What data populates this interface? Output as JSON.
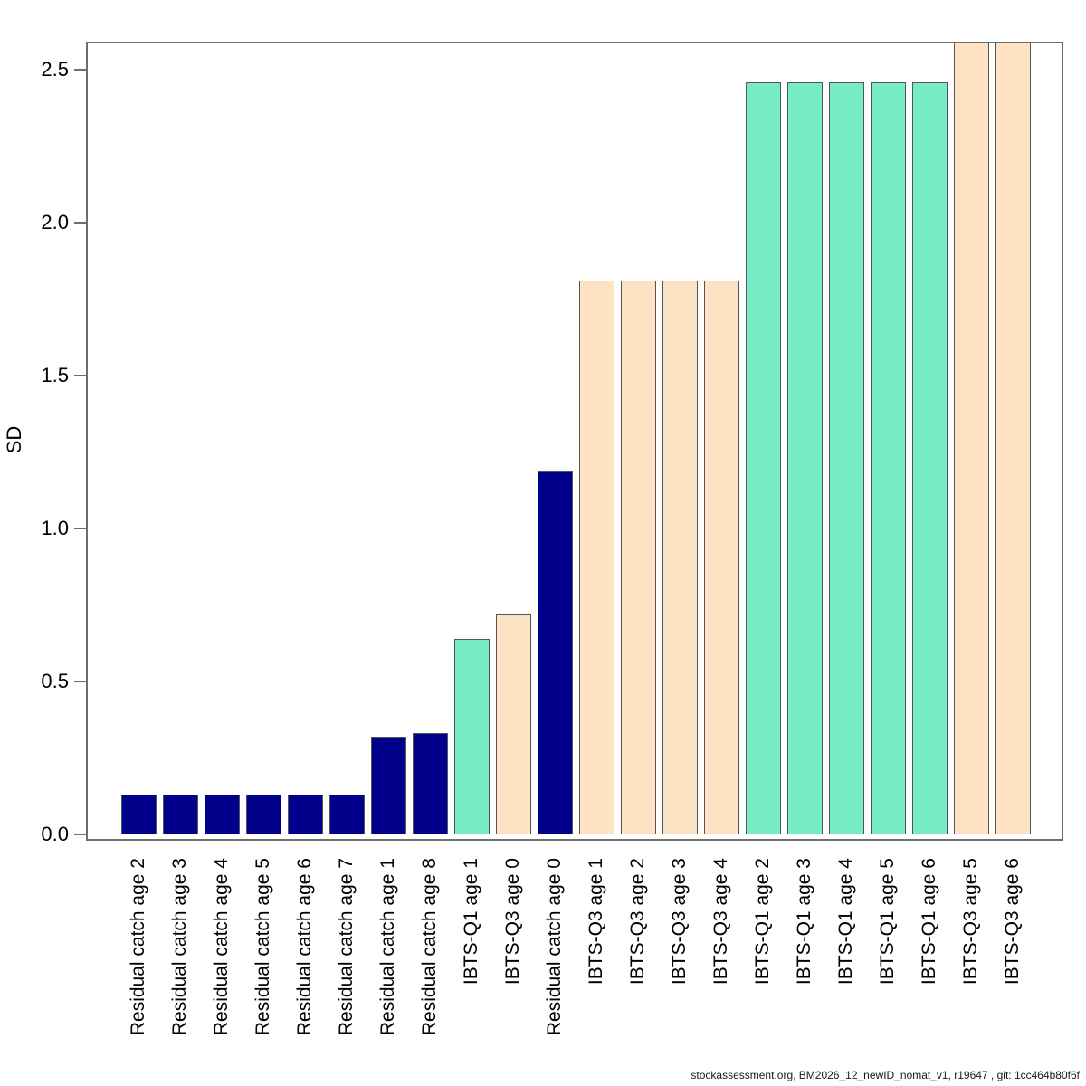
{
  "figure": {
    "ylabel": "SD",
    "footer": "stockassessment.org, BM2026_12_newID_nomat_v1, r19647 , git: 1cc464b80f6f"
  },
  "colors": {
    "catch": "#00008B",
    "ibts_q1": "#76ECC4",
    "ibts_q3": "#FDE3C3",
    "bar_border": "#555555",
    "axis": "#6e6e6e",
    "text": "#000000",
    "background": "#ffffff"
  },
  "chart_data": {
    "type": "bar",
    "title": "",
    "xlabel": "",
    "ylabel": "SD",
    "ylim": [
      0,
      2.6
    ],
    "grid": false,
    "legend": false,
    "ytick_values": [
      0.0,
      0.5,
      1.0,
      1.5,
      2.0,
      2.5
    ],
    "ytick_labels": [
      "0.0",
      "0.5",
      "1.0",
      "1.5",
      "2.0",
      "2.5"
    ],
    "categories": [
      "Residual catch age 2",
      "Residual catch age 3",
      "Residual catch age 4",
      "Residual catch age 5",
      "Residual catch age 6",
      "Residual catch age 7",
      "Residual catch age 1",
      "Residual catch age 8",
      "IBTS-Q1 age 1",
      "IBTS-Q3 age 0",
      "Residual catch age 0",
      "IBTS-Q3 age 1",
      "IBTS-Q3 age 2",
      "IBTS-Q3 age 3",
      "IBTS-Q3 age 4",
      "IBTS-Q1 age 2",
      "IBTS-Q1 age 3",
      "IBTS-Q1 age 4",
      "IBTS-Q1 age 5",
      "IBTS-Q1 age 6",
      "IBTS-Q3 age 5",
      "IBTS-Q3 age 6"
    ],
    "values": [
      0.13,
      0.13,
      0.13,
      0.13,
      0.13,
      0.13,
      0.32,
      0.33,
      0.64,
      0.72,
      1.19,
      1.81,
      1.81,
      1.81,
      1.81,
      2.46,
      2.46,
      2.46,
      2.46,
      2.46,
      2.59,
      2.59
    ],
    "bar_groups": [
      "catch",
      "catch",
      "catch",
      "catch",
      "catch",
      "catch",
      "catch",
      "catch",
      "ibts_q1",
      "ibts_q3",
      "catch",
      "ibts_q3",
      "ibts_q3",
      "ibts_q3",
      "ibts_q3",
      "ibts_q1",
      "ibts_q1",
      "ibts_q1",
      "ibts_q1",
      "ibts_q1",
      "ibts_q3",
      "ibts_q3"
    ]
  }
}
